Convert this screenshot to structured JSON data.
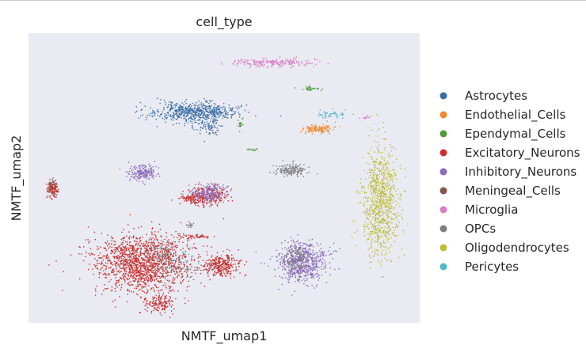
{
  "chart_data": {
    "type": "scatter",
    "title": "cell_type",
    "xlabel": "NMTF_umap1",
    "ylabel": "NMTF_umap2",
    "xlim": [
      0,
      100
    ],
    "ylim": [
      0,
      100
    ],
    "grid": false,
    "legend_position": "right",
    "legend": [
      {
        "name": "Astrocytes",
        "color": "#3a6ea5"
      },
      {
        "name": "Endothelial_Cells",
        "color": "#ef8a2e"
      },
      {
        "name": "Ependymal_Cells",
        "color": "#4e9b3e"
      },
      {
        "name": "Excitatory_Neurons",
        "color": "#c8312f"
      },
      {
        "name": "Inhibitory_Neurons",
        "color": "#8c6bbd"
      },
      {
        "name": "Meningeal_Cells",
        "color": "#86574c"
      },
      {
        "name": "Microglia",
        "color": "#d97ec6"
      },
      {
        "name": "OPCs",
        "color": "#7f7f7f"
      },
      {
        "name": "Oligodendrocytes",
        "color": "#bcbd3b"
      },
      {
        "name": "Pericytes",
        "color": "#4fb8c9"
      }
    ],
    "clusters": [
      {
        "cell_type": "Microglia",
        "center": [
          62,
          90
        ],
        "spread": [
          9,
          1.2
        ],
        "count": 220
      },
      {
        "cell_type": "Astrocytes",
        "center": [
          42,
          73
        ],
        "spread": [
          10,
          3
        ],
        "count": 620
      },
      {
        "cell_type": "Astrocytes",
        "center": [
          46,
          68
        ],
        "spread": [
          2.5,
          3
        ],
        "count": 80
      },
      {
        "cell_type": "Endothelial_Cells",
        "center": [
          74,
          67
        ],
        "spread": [
          3.5,
          1.2
        ],
        "count": 140
      },
      {
        "cell_type": "Pericytes",
        "center": [
          77,
          72
        ],
        "spread": [
          4,
          1.5
        ],
        "count": 50
      },
      {
        "cell_type": "Ependymal_Cells",
        "center": [
          72,
          81
        ],
        "spread": [
          2,
          0.6
        ],
        "count": 35
      },
      {
        "cell_type": "Ependymal_Cells",
        "center": [
          54,
          69
        ],
        "spread": [
          0.6,
          1.5
        ],
        "count": 25
      },
      {
        "cell_type": "Ependymal_Cells",
        "center": [
          57,
          60
        ],
        "spread": [
          1,
          0.3
        ],
        "count": 14
      },
      {
        "cell_type": "OPCs",
        "center": [
          67,
          53
        ],
        "spread": [
          3.5,
          2
        ],
        "count": 170
      },
      {
        "cell_type": "Inhibitory_Neurons",
        "center": [
          29,
          52
        ],
        "spread": [
          3.5,
          2.5
        ],
        "count": 200
      },
      {
        "cell_type": "Excitatory_Neurons",
        "center": [
          46,
          44
        ],
        "spread": [
          4.5,
          3
        ],
        "count": 250
      },
      {
        "cell_type": "Inhibitory_Neurons",
        "center": [
          46,
          45
        ],
        "spread": [
          4,
          3
        ],
        "count": 200
      },
      {
        "cell_type": "Excitatory_Neurons",
        "center": [
          41,
          43
        ],
        "spread": [
          3,
          1.5
        ],
        "count": 80
      },
      {
        "cell_type": "Meningeal_Cells",
        "center": [
          6,
          47
        ],
        "spread": [
          1.3,
          2.5
        ],
        "count": 80
      },
      {
        "cell_type": "Excitatory_Neurons",
        "center": [
          6,
          46
        ],
        "spread": [
          1.3,
          2.3
        ],
        "count": 70
      },
      {
        "cell_type": "Oligodendrocytes",
        "center": [
          90,
          42
        ],
        "spread": [
          4,
          17
        ],
        "count": 900
      },
      {
        "cell_type": "Inhibitory_Neurons",
        "center": [
          70,
          21
        ],
        "spread": [
          5.5,
          6
        ],
        "count": 620
      },
      {
        "cell_type": "OPCs",
        "center": [
          68,
          22
        ],
        "spread": [
          4,
          5
        ],
        "count": 160
      },
      {
        "cell_type": "Excitatory_Neurons",
        "center": [
          29,
          21
        ],
        "spread": [
          11,
          9
        ],
        "count": 1500
      },
      {
        "cell_type": "Excitatory_Neurons",
        "center": [
          33,
          7
        ],
        "spread": [
          4,
          3.5
        ],
        "count": 160
      },
      {
        "cell_type": "Excitatory_Neurons",
        "center": [
          49,
          20
        ],
        "spread": [
          4,
          3.5
        ],
        "count": 320
      },
      {
        "cell_type": "Excitatory_Neurons",
        "center": [
          43,
          30
        ],
        "spread": [
          3,
          0.6
        ],
        "count": 50
      },
      {
        "cell_type": "OPCs",
        "center": [
          41,
          34
        ],
        "spread": [
          1,
          1
        ],
        "count": 20
      },
      {
        "cell_type": "OPCs",
        "center": [
          34,
          25
        ],
        "spread": [
          3,
          4
        ],
        "count": 70
      },
      {
        "cell_type": "Meningeal_Cells",
        "center": [
          38,
          18
        ],
        "spread": [
          6,
          4
        ],
        "count": 60
      },
      {
        "cell_type": "Pericytes",
        "center": [
          38,
          22
        ],
        "spread": [
          6,
          4
        ],
        "count": 30
      },
      {
        "cell_type": "Microglia",
        "center": [
          86,
          71
        ],
        "spread": [
          1,
          0.4
        ],
        "count": 12
      }
    ]
  }
}
